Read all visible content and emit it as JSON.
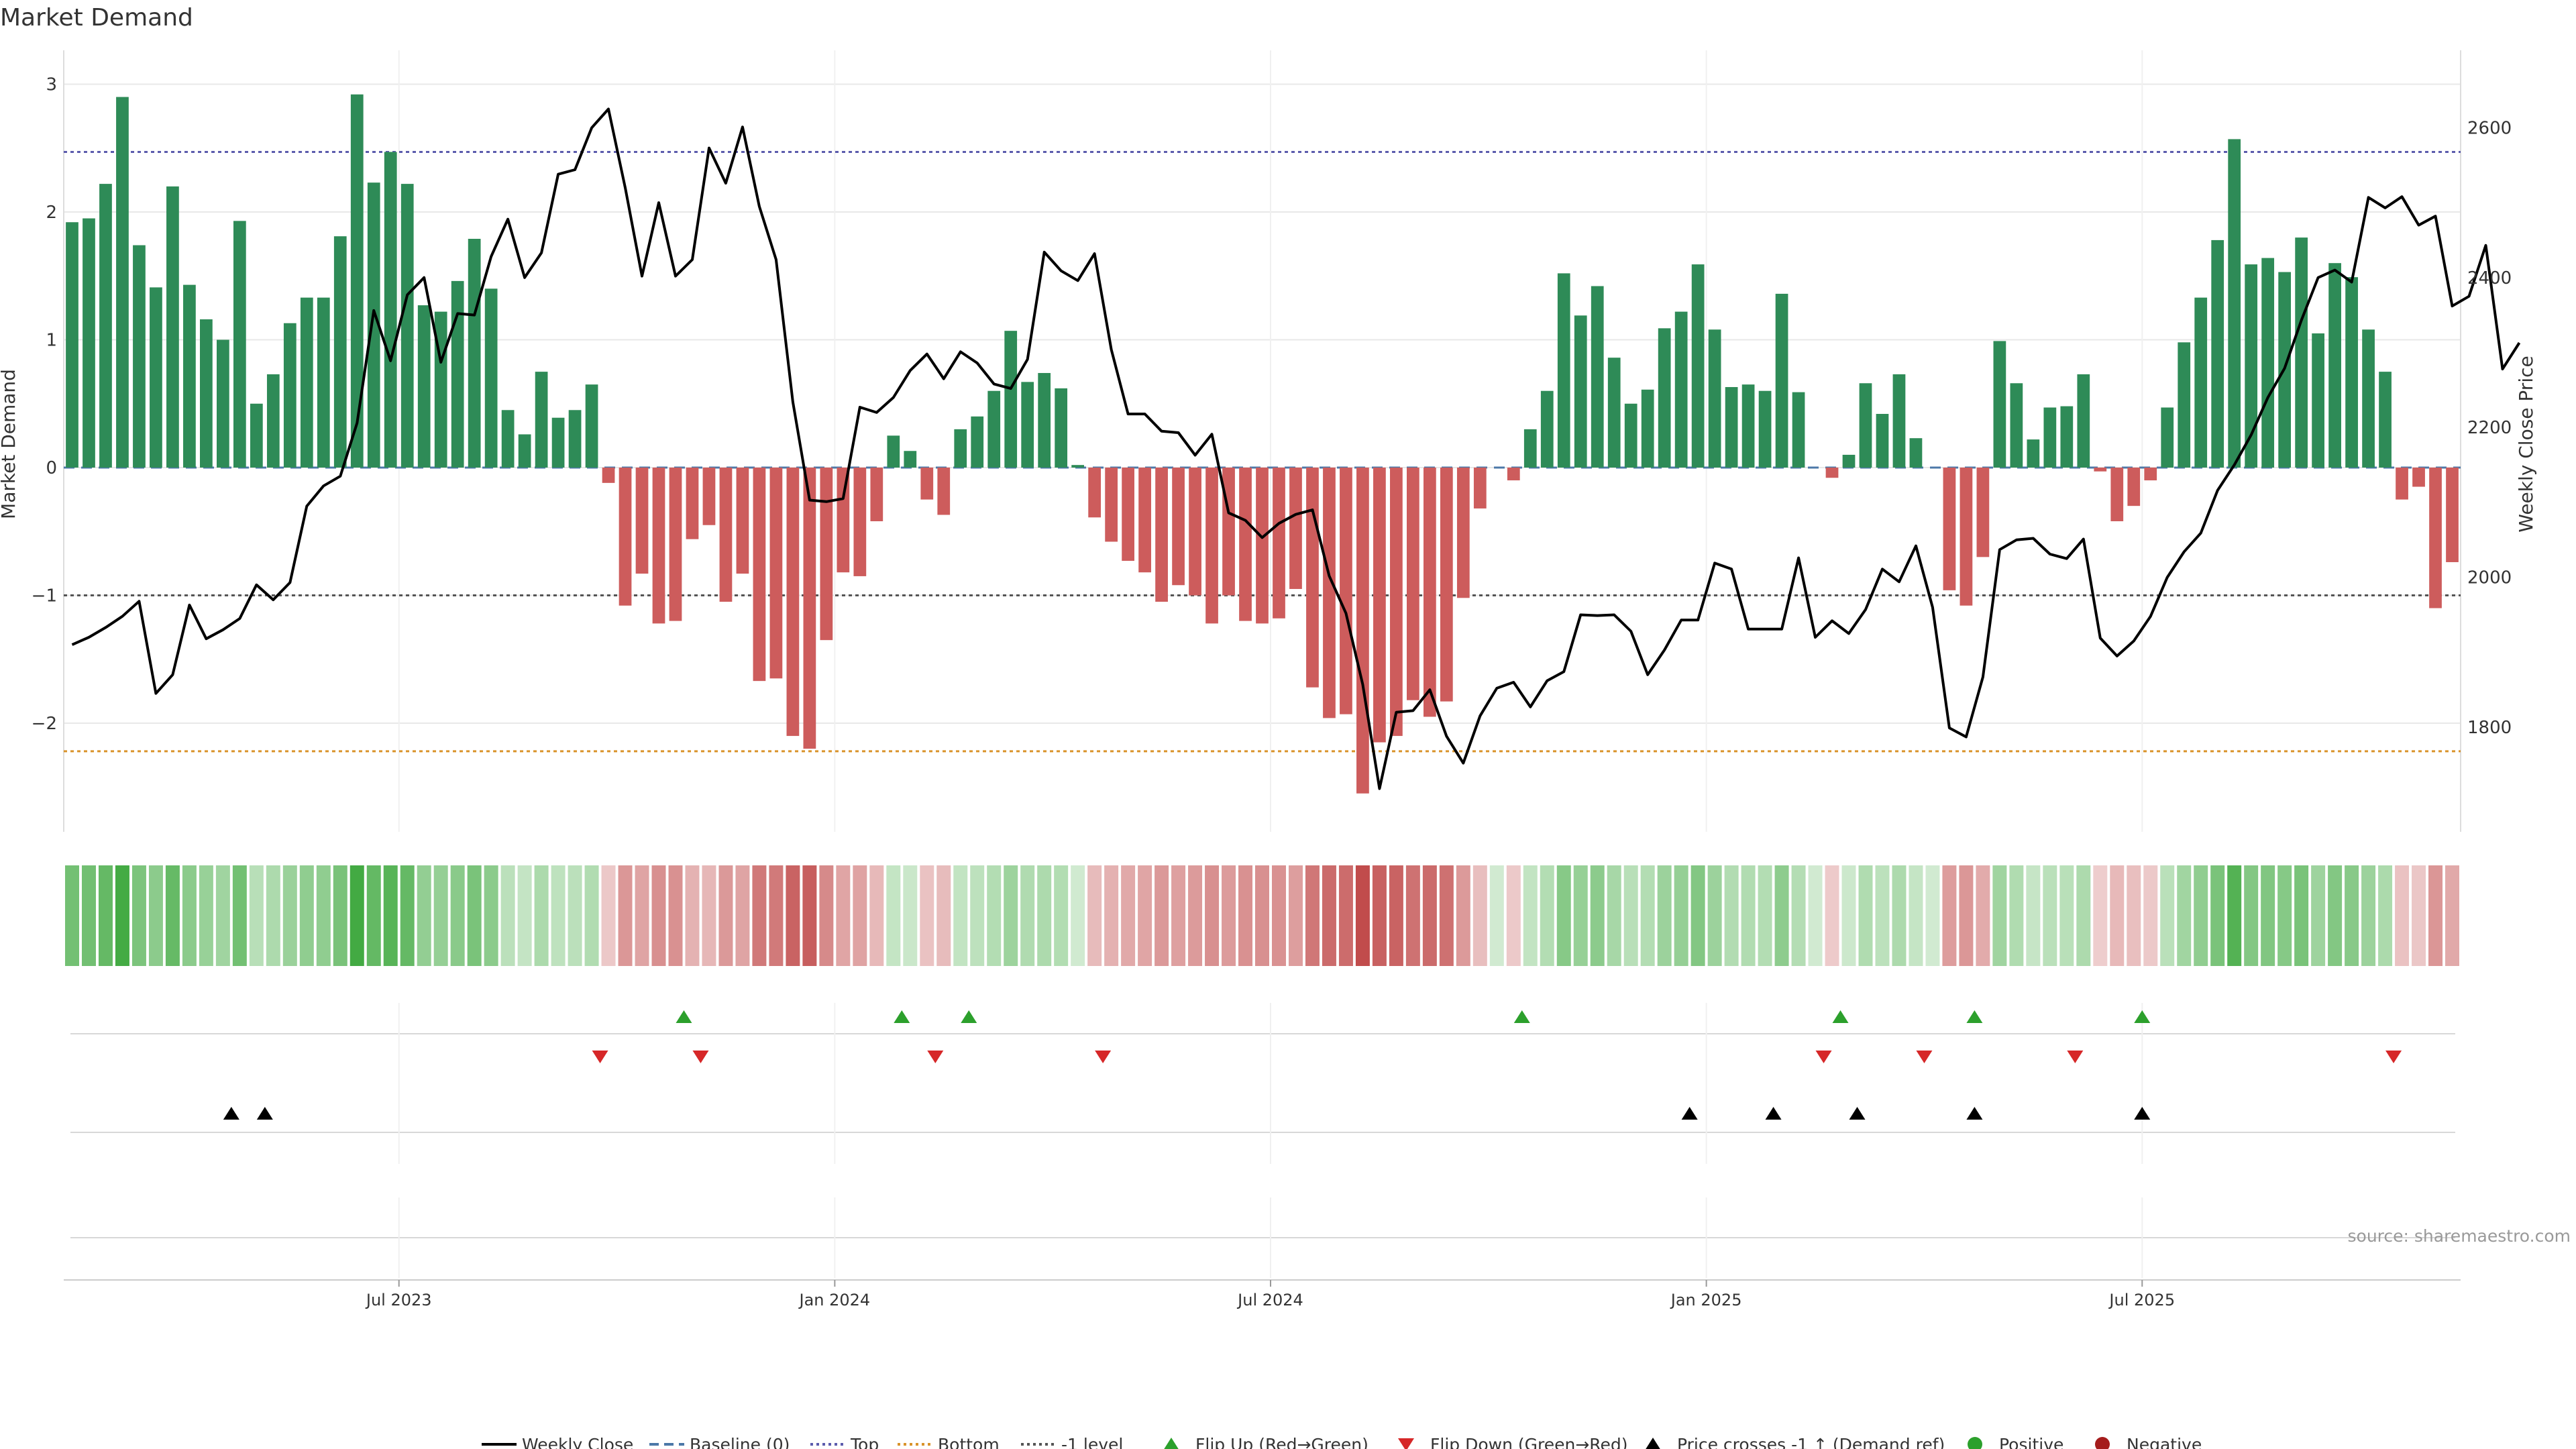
{
  "chart_data": {
    "type": "bar",
    "title": "Market Demand",
    "ylabel": "Market Demand",
    "y2label": "Weekly Close Price",
    "ylim": [
      -2.9,
      3.0
    ],
    "y2lim": [
      1640,
      2665
    ],
    "yticks": [
      3,
      2,
      1,
      0,
      -1,
      -2
    ],
    "ytick_labels": [
      "3",
      "2",
      "1",
      "0",
      "−1",
      "−2"
    ],
    "y2ticks": [
      2600,
      2400,
      2200,
      2000,
      1800
    ],
    "y2tick_labels": [
      "2600",
      "2400",
      "2200",
      "2000",
      "1800"
    ],
    "xticks": [
      {
        "label": "Jul 2023",
        "week": 20
      },
      {
        "label": "Jan 2024",
        "week": 46
      },
      {
        "label": "Jul 2024",
        "week": 72
      },
      {
        "label": "Jan 2025",
        "week": 98
      },
      {
        "label": "Jul 2025",
        "week": 124
      }
    ],
    "reference_lines": {
      "top": 2.47,
      "bottom": -2.22,
      "minus_one": -1.0,
      "baseline": 0
    },
    "demand": [
      1.92,
      1.95,
      2.22,
      2.9,
      1.74,
      1.41,
      2.2,
      1.43,
      1.16,
      1.0,
      1.93,
      0.5,
      0.73,
      1.13,
      1.33,
      1.33,
      1.81,
      2.92,
      2.23,
      2.47,
      2.22,
      1.27,
      1.22,
      1.46,
      1.79,
      1.4,
      0.45,
      0.26,
      0.75,
      0.39,
      0.45,
      0.65,
      -0.12,
      -1.08,
      -0.83,
      -1.22,
      -1.2,
      -0.56,
      -0.45,
      -1.05,
      -0.83,
      -1.67,
      -1.65,
      -2.1,
      -2.2,
      -1.35,
      -0.82,
      -0.85,
      -0.42,
      0.25,
      0.13,
      -0.25,
      -0.37,
      0.3,
      0.4,
      0.6,
      1.07,
      0.67,
      0.74,
      0.62,
      0.02,
      -0.39,
      -0.58,
      -0.73,
      -0.82,
      -1.05,
      -0.92,
      -1.0,
      -1.22,
      -1.0,
      -1.2,
      -1.22,
      -1.18,
      -0.95,
      -1.72,
      -1.96,
      -1.93,
      -2.55,
      -2.15,
      -2.1,
      -1.82,
      -1.95,
      -1.83,
      -1.02,
      -0.32,
      0.0,
      -0.1,
      0.3,
      0.6,
      1.52,
      1.19,
      1.42,
      0.86,
      0.5,
      0.61,
      1.09,
      1.22,
      1.59,
      1.08,
      0.63,
      0.65,
      0.6,
      1.36,
      0.59,
      0.0,
      -0.08,
      0.1,
      0.66,
      0.42,
      0.73,
      0.23,
      0.0,
      -0.96,
      -1.08,
      -0.7,
      0.99,
      0.66,
      0.22,
      0.47,
      0.48,
      0.73,
      -0.03,
      -0.42,
      -0.3,
      -0.1,
      0.47,
      0.98,
      1.33,
      1.78,
      2.57,
      1.59,
      1.64,
      1.53,
      1.8,
      1.05,
      1.6,
      1.49,
      1.08,
      0.75,
      -0.25,
      -0.15,
      -1.1,
      -0.74
    ],
    "weekly_close": [
      1910,
      1920,
      1933,
      1948,
      1968,
      1845,
      1870,
      1963,
      1918,
      1930,
      1945,
      1990,
      1970,
      1993,
      2095,
      2122,
      2135,
      2206,
      2356,
      2289,
      2377,
      2400,
      2287,
      2352,
      2350,
      2428,
      2478,
      2400,
      2433,
      2538,
      2544,
      2600,
      2625,
      2520,
      2402,
      2500,
      2402,
      2424,
      2573,
      2526,
      2601,
      2495,
      2424,
      2234,
      2103,
      2101,
      2105,
      2227,
      2220,
      2240,
      2276,
      2298,
      2265,
      2301,
      2286,
      2258,
      2252,
      2291,
      2434,
      2409,
      2396,
      2432,
      2304,
      2218,
      2218,
      2195,
      2193,
      2163,
      2191,
      2086,
      2076,
      2053,
      2072,
      2084,
      2090,
      2002,
      1952,
      1857,
      1718,
      1820,
      1822,
      1850,
      1788,
      1752,
      1815,
      1852,
      1860,
      1827,
      1862,
      1874,
      1950,
      1949,
      1950,
      1928,
      1870,
      1903,
      1943,
      1943,
      2019,
      2011,
      1931,
      1931,
      1931,
      2026,
      1920,
      1942,
      1925,
      1957,
      2011,
      1994,
      2042,
      1960,
      1799,
      1787,
      1867,
      2037,
      2050,
      2052,
      2031,
      2025,
      2051,
      1919,
      1895,
      1915,
      1948,
      2000,
      2034,
      2059,
      2116,
      2150,
      2190,
      2240,
      2279,
      2343,
      2400,
      2410,
      2394,
      2507,
      2493,
      2508,
      2470,
      2482,
      2362,
      2375,
      2443,
      2278,
      2313
    ],
    "heatmap_strip": "Market demand weekly intensity strip (green = positive, red = negative)",
    "events": {
      "flip_up_weeks": [
        37,
        50,
        54,
        87,
        106,
        114,
        124
      ],
      "flip_down_weeks": [
        32,
        38,
        52,
        62,
        105,
        111,
        120,
        139
      ],
      "price_cross_up_weeks": [
        10,
        12,
        97,
        102,
        107,
        114,
        124
      ]
    },
    "legend": [
      {
        "label": "Weekly Close",
        "kind": "solid-line",
        "color": "#000000"
      },
      {
        "label": "Baseline (0)",
        "kind": "dash-line",
        "color": "#4c78a8"
      },
      {
        "label": "Top",
        "kind": "dot-line",
        "color": "#5c5cad"
      },
      {
        "label": "Bottom",
        "kind": "dot-line",
        "color": "#d9932b"
      },
      {
        "label": "-1 level",
        "kind": "dot-line",
        "color": "#555555"
      },
      {
        "label": "Flip Up (Red→Green)",
        "kind": "up-triangle",
        "color": "#2ca02c"
      },
      {
        "label": "Flip Down (Green→Red)",
        "kind": "down-triangle",
        "color": "#d62728"
      },
      {
        "label": "Price crosses -1 ↑ (Demand ref)",
        "kind": "up-triangle",
        "color": "#000000"
      },
      {
        "label": "Positive",
        "kind": "dot",
        "color": "#2ca02c"
      },
      {
        "label": "Negative",
        "kind": "dot",
        "color": "#a51c1c"
      }
    ],
    "source": "source: sharemaestro.com"
  },
  "colors": {
    "positive_bar": "#2e8b57",
    "negative_bar": "#cd5c5c",
    "price_line": "#000000",
    "top_line": "#5c5cad",
    "bottom_line": "#d9932b",
    "minus_one_line": "#555555",
    "baseline": "#4c78a8",
    "strip_green": "#2ca02c",
    "strip_red": "#b22222",
    "grid": "#e8e8e8"
  }
}
